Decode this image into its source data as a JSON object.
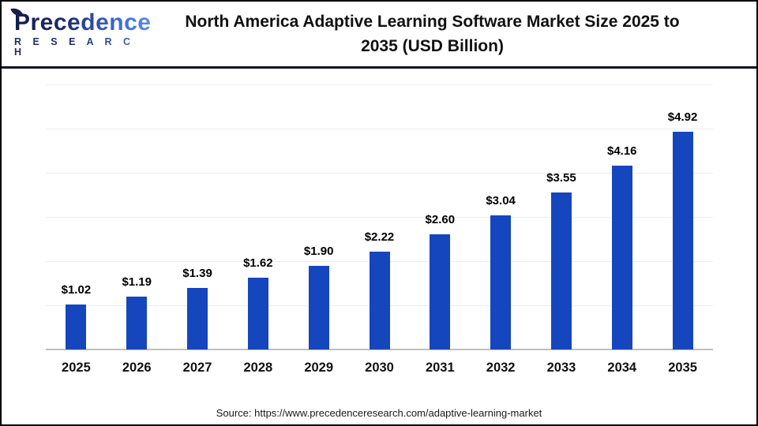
{
  "header": {
    "logo": {
      "name": "Precedence Research",
      "line1": "Precedence",
      "line2": "R E S E A R C H"
    },
    "title_line1": "North America Adaptive Learning Software Market Size 2025 to",
    "title_line2": "2035 (USD Billion)"
  },
  "chart_data": {
    "type": "bar",
    "title": "North America Adaptive Learning Software Market Size 2025 to 2035 (USD Billion)",
    "unit": "USD Billion",
    "categories": [
      "2025",
      "2026",
      "2027",
      "2028",
      "2029",
      "2030",
      "2031",
      "2032",
      "2033",
      "2034",
      "2035"
    ],
    "values": [
      1.02,
      1.19,
      1.39,
      1.62,
      1.9,
      2.22,
      2.6,
      3.04,
      3.55,
      4.16,
      4.92
    ],
    "value_labels": [
      "$1.02",
      "$1.19",
      "$1.39",
      "$1.62",
      "$1.90",
      "$2.22",
      "$2.60",
      "$3.04",
      "$3.55",
      "$4.16",
      "$4.92"
    ],
    "xlabel": "",
    "ylabel": "",
    "ylim": [
      0,
      6
    ],
    "gridline_step": 1,
    "grid": true,
    "legend": "none",
    "bar_color": "#1546BE",
    "gridline_color": "#ededed",
    "baseline_color": "#bfbfbf"
  },
  "footer": {
    "source": "Source: https://www.precedenceresearch.com/adaptive-learning-market"
  }
}
